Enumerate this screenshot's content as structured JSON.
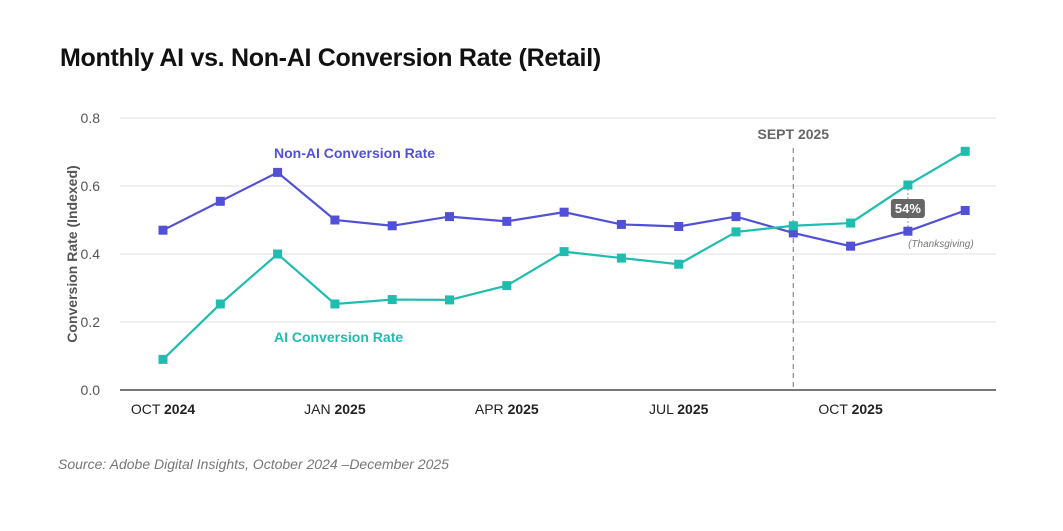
{
  "chart_data": {
    "type": "line",
    "title": "Monthly AI vs. Non-AI Conversion Rate (Retail)",
    "ylabel": "Conversion Rate (Indexed)",
    "xlabel": "",
    "ylim": [
      0,
      0.8
    ],
    "yticks": [
      "0.0",
      "0.2",
      "0.4",
      "0.6",
      "0.8"
    ],
    "grid": true,
    "categories": [
      "Oct 2024",
      "Nov 2024",
      "Dec 2024",
      "Jan 2025",
      "Feb 2025",
      "Mar 2025",
      "Apr 2025",
      "May 2025",
      "Jun 2025",
      "Jul 2025",
      "Aug 2025",
      "Sep 2025",
      "Oct 2025",
      "Nov 2025",
      "Dec 2025"
    ],
    "xticks": [
      {
        "index": 0,
        "month": "OCT",
        "year": "2024"
      },
      {
        "index": 3,
        "month": "JAN",
        "year": "2025"
      },
      {
        "index": 6,
        "month": "APR",
        "year": "2025"
      },
      {
        "index": 9,
        "month": "JUL",
        "year": "2025"
      },
      {
        "index": 12,
        "month": "OCT",
        "year": "2025"
      }
    ],
    "series": [
      {
        "name": "Non-AI Conversion Rate",
        "color": "#5150d6",
        "values": [
          0.47,
          0.555,
          0.64,
          0.5,
          0.483,
          0.51,
          0.496,
          0.523,
          0.487,
          0.481,
          0.51,
          0.462,
          0.423,
          0.467,
          0.528
        ]
      },
      {
        "name": "AI Conversion Rate",
        "color": "#1fbdb0",
        "values": [
          0.09,
          0.253,
          0.4,
          0.253,
          0.266,
          0.265,
          0.307,
          0.407,
          0.388,
          0.37,
          0.465,
          0.483,
          0.491,
          0.603,
          0.702
        ]
      }
    ],
    "annotations": [
      {
        "type": "vline",
        "index": 11,
        "label": "SEPT 2025"
      },
      {
        "type": "badge",
        "index": 13,
        "label": "54%",
        "note": "(Thanksgiving)"
      }
    ]
  },
  "source": "Source: Adobe Digital Insights, October 2024 –December 2025"
}
